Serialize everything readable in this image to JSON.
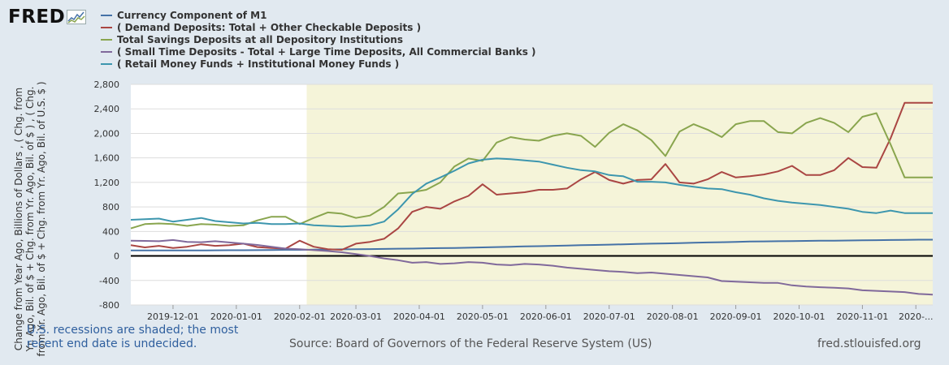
{
  "logo": {
    "text": "FRED",
    "icon": "fred-graph-icon"
  },
  "footer": {
    "recession_note_line1": "U.S. recessions are shaded; the most",
    "recession_note_line2": "recent end date is undecided.",
    "source": "Source: Board of Governors of the Federal Reserve System (US)",
    "site": "fred.stlouisfed.org"
  },
  "chart_data": {
    "type": "line",
    "title": "",
    "ylabel": "Change from Year Ago, Billions of Dollars , ( Chg. from Yr. Ago, Bil. of $ + Chg. from Yr. Ago, Bil. of $ ) , ( Chg. from Yr. Ago, Bil. of $ + Chg. from Yr. Ago, Bil. of U.S. $ )",
    "xlabel": "",
    "ylim": [
      -800,
      2800
    ],
    "yticks": [
      -800,
      -400,
      0,
      400,
      800,
      1200,
      1600,
      2000,
      2400,
      2800
    ],
    "ytick_labels": [
      "-800",
      "-400",
      "0",
      "400",
      "800",
      "1,200",
      "1,600",
      "2,000",
      "2,400",
      "2,800"
    ],
    "xticks": [
      {
        "label": "2019-12-01",
        "week": 3
      },
      {
        "label": "2020-01-01",
        "week": 7.5
      },
      {
        "label": "2020-02-01",
        "week": 12
      },
      {
        "label": "2020-03-01",
        "week": 16
      },
      {
        "label": "2020-04-01",
        "week": 20.5
      },
      {
        "label": "2020-05-01",
        "week": 25
      },
      {
        "label": "2020-06-01",
        "week": 29.5
      },
      {
        "label": "2020-07-01",
        "week": 34
      },
      {
        "label": "2020-08-01",
        "week": 38.5
      },
      {
        "label": "2020-09-01",
        "week": 43
      },
      {
        "label": "2020-10-01",
        "week": 47.5
      },
      {
        "label": "2020-11-01",
        "week": 52
      },
      {
        "label": "2020-...",
        "week": 55.8
      }
    ],
    "xlim": [
      0,
      57
    ],
    "x_unit": "week index (weekly observations starting 2019-11-04)",
    "recession": {
      "start_week": 12.5,
      "end_week": 57
    },
    "zero_line": true,
    "series": [
      {
        "name": "Currency Component of M1",
        "color": "#4572a7",
        "values": [
          90,
          90,
          90,
          90,
          90,
          90,
          92,
          93,
          93,
          95,
          97,
          100,
          100,
          102,
          105,
          108,
          110,
          112,
          115,
          118,
          120,
          125,
          128,
          130,
          135,
          140,
          145,
          150,
          155,
          160,
          165,
          170,
          175,
          180,
          185,
          190,
          195,
          200,
          205,
          210,
          215,
          220,
          225,
          230,
          235,
          238,
          240,
          242,
          245,
          248,
          250,
          252,
          255,
          258,
          260,
          262,
          265,
          265
        ]
      },
      {
        "name": "( Demand Deposits: Total + Other Checkable Deposits )",
        "color": "#aa4643",
        "values": [
          175,
          140,
          165,
          130,
          150,
          190,
          165,
          175,
          200,
          145,
          130,
          120,
          250,
          150,
          110,
          100,
          200,
          230,
          280,
          450,
          720,
          800,
          770,
          890,
          980,
          1170,
          1000,
          1020,
          1040,
          1080,
          1080,
          1100,
          1250,
          1370,
          1240,
          1180,
          1240,
          1250,
          1500,
          1200,
          1180,
          1250,
          1370,
          1280,
          1300,
          1330,
          1380,
          1470,
          1320,
          1320,
          1400,
          1600,
          1450,
          1440,
          1920,
          2500,
          2500,
          2500
        ]
      },
      {
        "name": "Total Savings Deposits at all Depository Institutions",
        "color": "#89a54e",
        "values": [
          450,
          520,
          530,
          520,
          490,
          520,
          510,
          490,
          500,
          580,
          640,
          640,
          520,
          620,
          710,
          690,
          620,
          660,
          800,
          1020,
          1040,
          1080,
          1200,
          1460,
          1590,
          1550,
          1850,
          1940,
          1900,
          1880,
          1960,
          2000,
          1960,
          1780,
          2010,
          2150,
          2050,
          1890,
          1630,
          2030,
          2150,
          2060,
          1940,
          2150,
          2200,
          2200,
          2020,
          2000,
          2170,
          2250,
          2170,
          2020,
          2270,
          2330,
          1820,
          1280,
          1280,
          1280
        ]
      },
      {
        "name": "( Small Time Deposits - Total + Large Time Deposits, All Commercial Banks )",
        "color": "#80699b",
        "values": [
          250,
          245,
          240,
          260,
          230,
          225,
          240,
          220,
          200,
          180,
          150,
          120,
          110,
          95,
          80,
          60,
          30,
          0,
          -40,
          -70,
          -110,
          -100,
          -130,
          -120,
          -100,
          -110,
          -140,
          -150,
          -130,
          -140,
          -160,
          -190,
          -210,
          -230,
          -250,
          -260,
          -280,
          -270,
          -290,
          -310,
          -330,
          -350,
          -410,
          -420,
          -430,
          -440,
          -440,
          -480,
          -500,
          -510,
          -520,
          -530,
          -560,
          -570,
          -580,
          -590,
          -620,
          -630
        ]
      },
      {
        "name": "( Retail Money Funds + Institutional Money Funds )",
        "color": "#3d96ae",
        "values": [
          590,
          600,
          610,
          560,
          590,
          620,
          570,
          550,
          530,
          540,
          520,
          520,
          530,
          500,
          490,
          480,
          490,
          500,
          560,
          760,
          1010,
          1180,
          1280,
          1390,
          1510,
          1570,
          1590,
          1580,
          1560,
          1540,
          1490,
          1440,
          1400,
          1380,
          1320,
          1300,
          1210,
          1210,
          1200,
          1160,
          1130,
          1100,
          1090,
          1040,
          1000,
          940,
          900,
          870,
          850,
          830,
          800,
          770,
          720,
          700,
          740,
          700,
          700,
          700
        ]
      }
    ]
  }
}
